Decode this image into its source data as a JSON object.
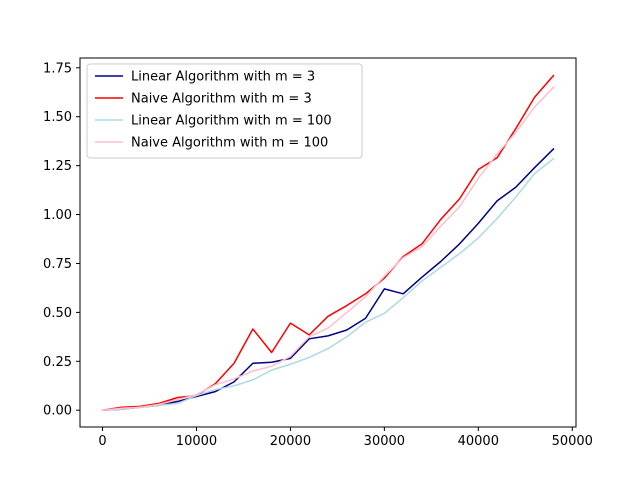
{
  "chart_data": {
    "type": "line",
    "title": "",
    "xlabel": "",
    "ylabel": "",
    "xlim": [
      -2400,
      50400
    ],
    "ylim": [
      -0.0857,
      1.8
    ],
    "x_ticks": [
      0,
      10000,
      20000,
      30000,
      40000,
      50000
    ],
    "x_tick_labels": [
      "0",
      "10000",
      "20000",
      "30000",
      "40000",
      "50000"
    ],
    "y_ticks": [
      0.0,
      0.25,
      0.5,
      0.75,
      1.0,
      1.25,
      1.5,
      1.75
    ],
    "y_tick_labels": [
      "0.00",
      "0.25",
      "0.50",
      "0.75",
      "1.00",
      "1.25",
      "1.50",
      "1.75"
    ],
    "grid": false,
    "legend_position": "top-left",
    "x": [
      0,
      2000,
      4000,
      6000,
      8000,
      10000,
      12000,
      14000,
      16000,
      18000,
      20000,
      22000,
      24000,
      26000,
      28000,
      30000,
      32000,
      34000,
      36000,
      38000,
      40000,
      42000,
      44000,
      46000,
      48000
    ],
    "series": [
      {
        "name": "Linear Algorithm with m = 3",
        "color": "#00008b",
        "values": [
          0.0,
          0.005,
          0.015,
          0.025,
          0.045,
          0.07,
          0.095,
          0.145,
          0.24,
          0.245,
          0.265,
          0.365,
          0.38,
          0.41,
          0.47,
          0.62,
          0.595,
          0.68,
          0.76,
          0.85,
          0.955,
          1.07,
          1.14,
          1.24,
          1.335
        ]
      },
      {
        "name": "Naive Algorithm with m = 3",
        "color": "#ff0000",
        "values": [
          0.0,
          0.015,
          0.02,
          0.035,
          0.065,
          0.075,
          0.135,
          0.24,
          0.415,
          0.295,
          0.445,
          0.385,
          0.48,
          0.535,
          0.595,
          0.675,
          0.785,
          0.85,
          0.975,
          1.08,
          1.23,
          1.29,
          1.44,
          1.6,
          1.71
        ]
      },
      {
        "name": "Linear Algorithm with m = 100",
        "color": "#add8e6",
        "values": [
          0.0,
          0.005,
          0.015,
          0.025,
          0.035,
          0.075,
          0.105,
          0.125,
          0.155,
          0.205,
          0.235,
          0.27,
          0.315,
          0.375,
          0.45,
          0.495,
          0.575,
          0.66,
          0.73,
          0.8,
          0.88,
          0.98,
          1.09,
          1.21,
          1.285
        ]
      },
      {
        "name": "Naive Algorithm with m = 100",
        "color": "#ffc0cb",
        "values": [
          0.0,
          0.01,
          0.015,
          0.03,
          0.055,
          0.08,
          0.13,
          0.16,
          0.2,
          0.225,
          0.275,
          0.375,
          0.42,
          0.5,
          0.58,
          0.685,
          0.78,
          0.835,
          0.94,
          1.04,
          1.185,
          1.31,
          1.42,
          1.55,
          1.65
        ]
      }
    ]
  }
}
